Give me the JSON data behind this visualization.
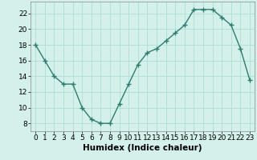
{
  "x": [
    0,
    1,
    2,
    3,
    4,
    5,
    6,
    7,
    8,
    9,
    10,
    11,
    12,
    13,
    14,
    15,
    16,
    17,
    18,
    19,
    20,
    21,
    22,
    23
  ],
  "y": [
    18,
    16,
    14,
    13,
    13,
    10,
    8.5,
    8,
    8,
    10.5,
    13,
    15.5,
    17,
    17.5,
    18.5,
    19.5,
    20.5,
    22.5,
    22.5,
    22.5,
    21.5,
    20.5,
    17.5,
    13.5
  ],
  "xlabel": "Humidex (Indice chaleur)",
  "ylim": [
    7,
    23.5
  ],
  "xlim": [
    -0.5,
    23.5
  ],
  "yticks": [
    8,
    10,
    12,
    14,
    16,
    18,
    20,
    22
  ],
  "xticks": [
    0,
    1,
    2,
    3,
    4,
    5,
    6,
    7,
    8,
    9,
    10,
    11,
    12,
    13,
    14,
    15,
    16,
    17,
    18,
    19,
    20,
    21,
    22,
    23
  ],
  "line_color": "#2e7d6e",
  "marker": "+",
  "bg_color": "#d4f0eb",
  "grid_color": "#aeddd6",
  "tick_label_fontsize": 6.5,
  "xlabel_fontsize": 7.5
}
